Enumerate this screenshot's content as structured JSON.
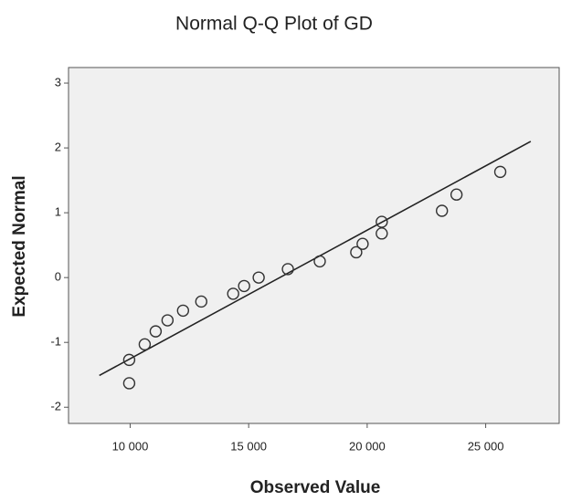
{
  "chart_data": {
    "type": "scatter",
    "title": "Normal Q-Q Plot of GD",
    "x_label": "Observed Value",
    "y_label": "Expected Normal",
    "x": [
      9960,
      9960,
      10615,
      11077,
      11577,
      12231,
      13000,
      14346,
      14808,
      15423,
      16654,
      18000,
      19538,
      19808,
      20615,
      20615,
      23154,
      23769,
      25615
    ],
    "values": [
      -1.27,
      -1.63,
      -1.03,
      -0.83,
      -0.66,
      -0.51,
      -0.37,
      -0.25,
      -0.13,
      0,
      0.13,
      0.25,
      0.39,
      0.52,
      0.86,
      0.68,
      1.03,
      1.28,
      1.63
    ],
    "reference_line": {
      "x": [
        8700,
        26900
      ],
      "y": [
        -1.51,
        2.1
      ]
    },
    "xlim": [
      7400,
      28100
    ],
    "ylim": [
      -2.25,
      3.24
    ],
    "xticks": [
      {
        "value": 10000,
        "label": "10 000"
      },
      {
        "value": 15000,
        "label": "15 000"
      },
      {
        "value": 20000,
        "label": "20 000"
      },
      {
        "value": 25000,
        "label": "25 000"
      }
    ],
    "yticks": [
      -2,
      -1,
      0,
      1,
      2,
      3
    ],
    "plot_background": "#f0f0f0",
    "marker_color": "#333333",
    "line_color": "#222222"
  }
}
